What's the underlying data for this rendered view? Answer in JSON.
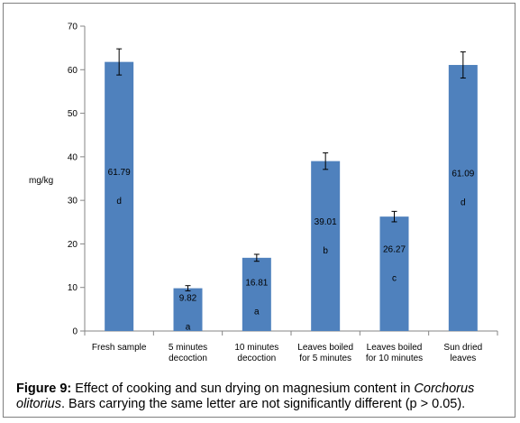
{
  "chart_data": {
    "type": "bar",
    "categories": [
      [
        "Fresh sample"
      ],
      [
        "5 minutes",
        "decoction"
      ],
      [
        "10 minutes",
        "decoction"
      ],
      [
        "Leaves boiled",
        "for 5 minutes"
      ],
      [
        "Leaves boiled",
        "for 10 minutes"
      ],
      [
        "Sun dried",
        "leaves"
      ]
    ],
    "values": [
      61.79,
      9.82,
      16.81,
      39.01,
      26.27,
      61.09
    ],
    "value_labels": [
      "61.79",
      "9.82",
      "16.81",
      "39.01",
      "26.27",
      "61.09"
    ],
    "error": [
      3.0,
      0.6,
      0.8,
      1.9,
      1.2,
      3.0
    ],
    "letters": [
      "d",
      "a",
      "a",
      "b",
      "c",
      "d"
    ],
    "ylabel": "mg/kg",
    "ylim": [
      0,
      70
    ],
    "yticks": [
      0,
      10,
      20,
      30,
      40,
      50,
      60,
      70
    ],
    "bar_color": "#4f81bd",
    "grid": false
  },
  "caption": {
    "label": "Figure 9:",
    "text_before": " Effect of cooking and sun drying on magnesium content in ",
    "species": "Corchorus olitorius",
    "text_after": ". Bars carrying the same letter are not significantly different (p > 0.05)."
  }
}
